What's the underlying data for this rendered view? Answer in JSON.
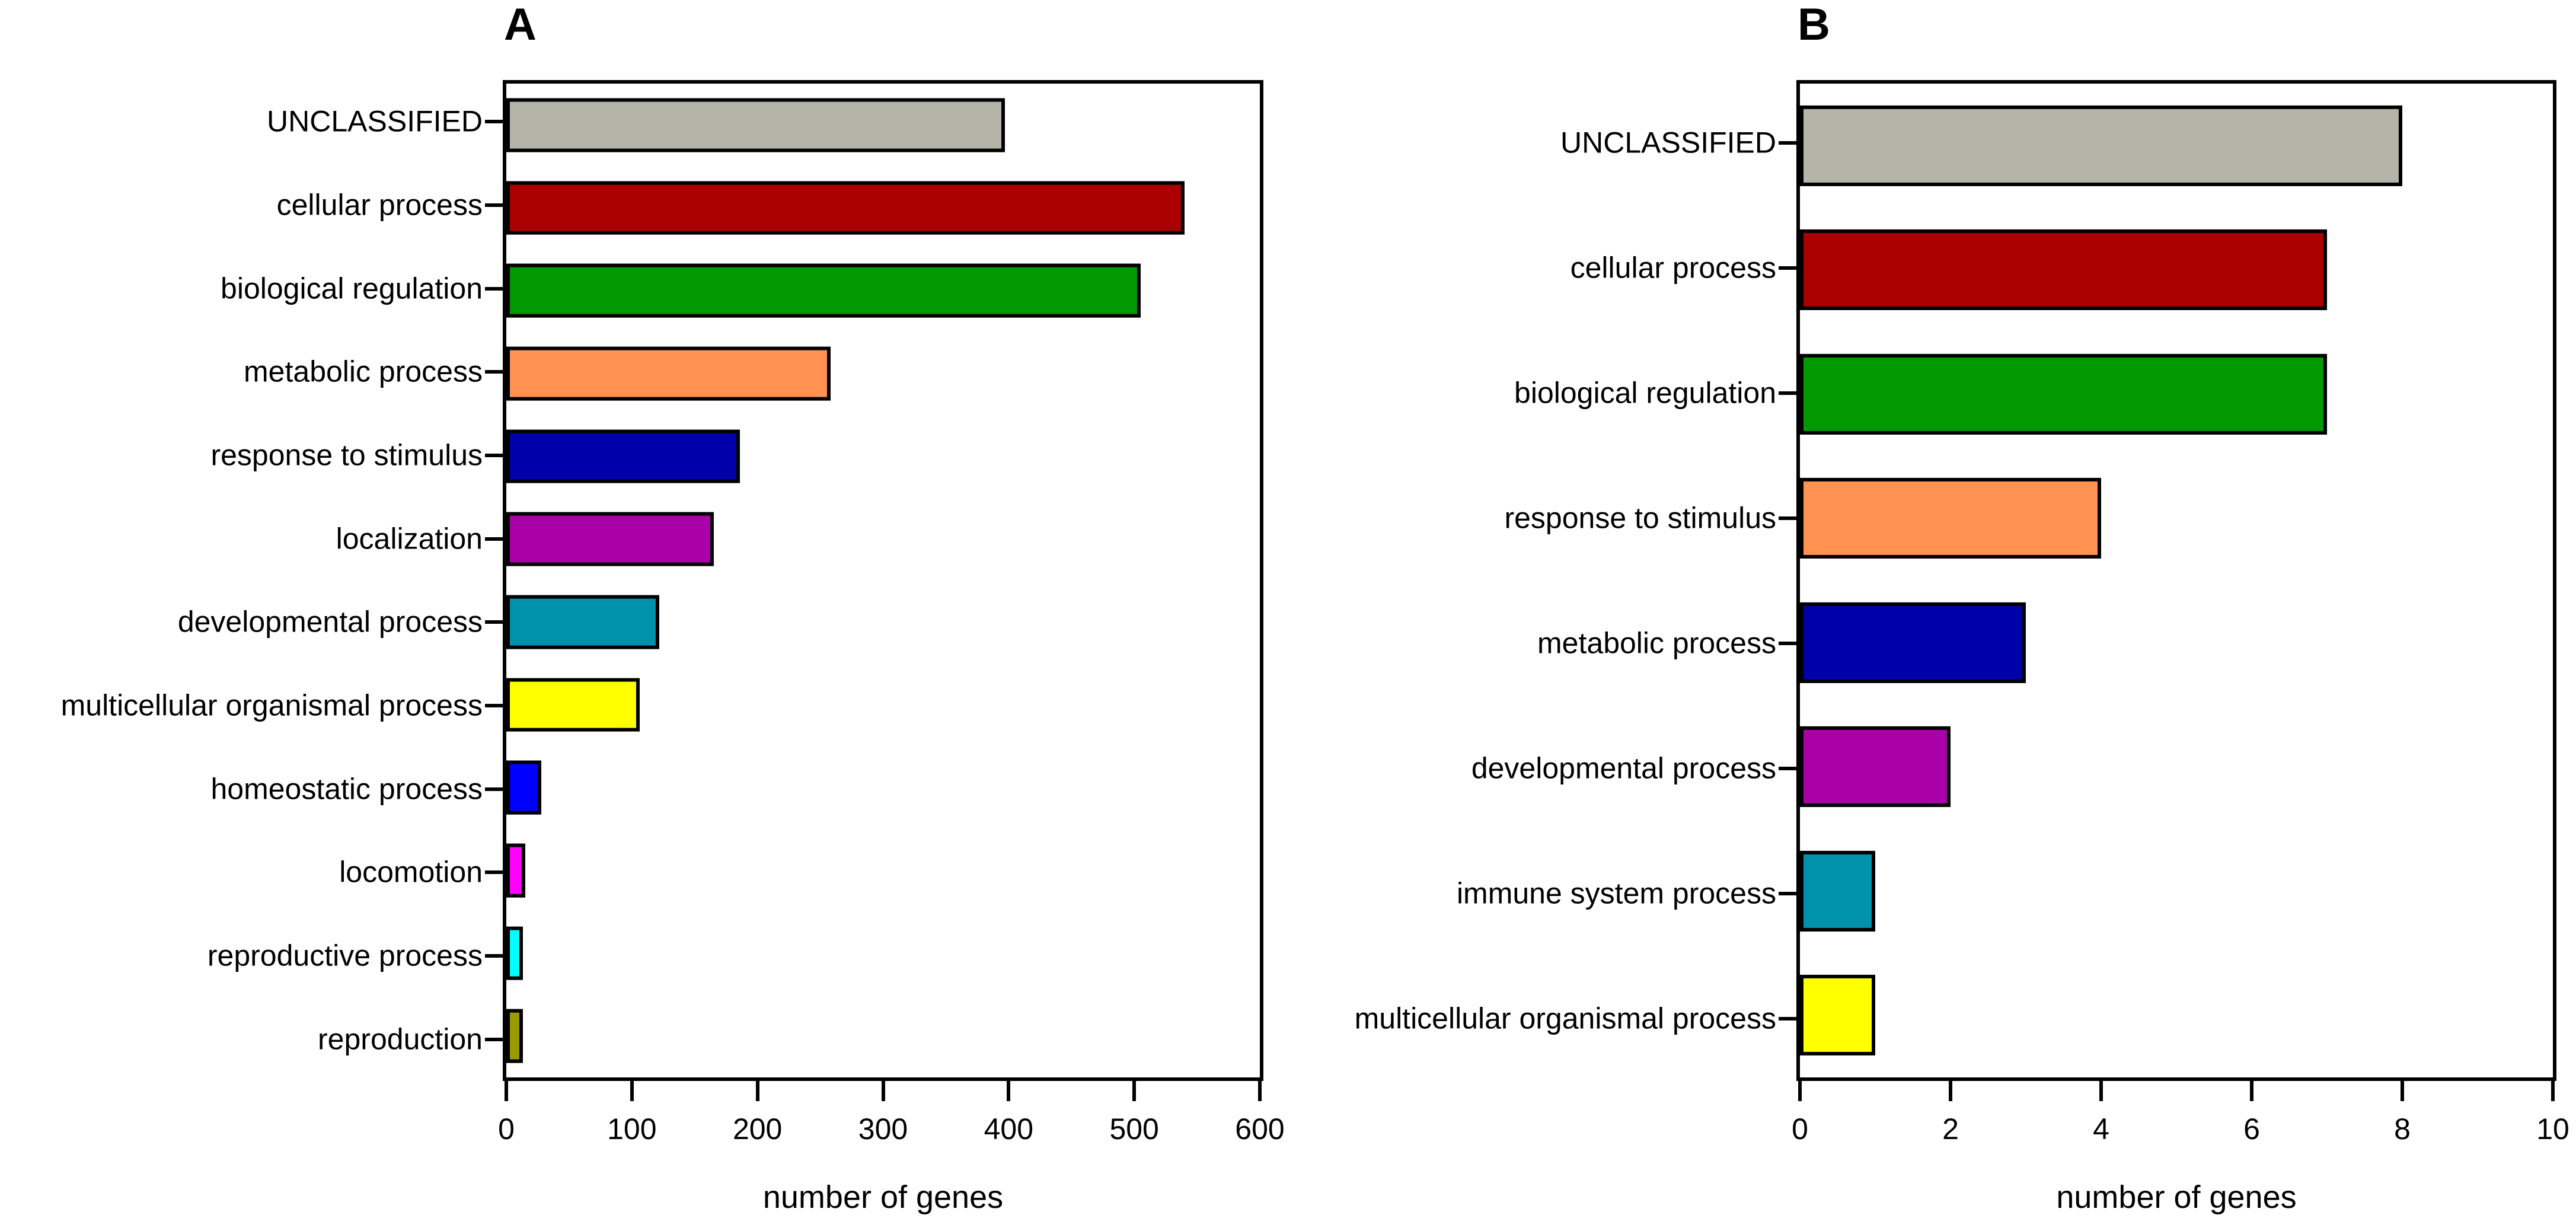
{
  "figure": {
    "background": "#ffffff",
    "axis_color": "#000000",
    "bar_outline_color": "#000000"
  },
  "chart_data": [
    {
      "type": "bar",
      "orientation": "horizontal",
      "panel_label": "A",
      "title": "",
      "xlabel": "number of genes",
      "ylabel": "",
      "xlim": [
        0,
        600
      ],
      "xticks": [
        0,
        100,
        200,
        300,
        400,
        500,
        600
      ],
      "grid": false,
      "legend": "none",
      "categories": [
        "UNCLASSIFIED",
        "cellular process",
        "biological regulation",
        "metabolic process",
        "response to stimulus",
        "localization",
        "developmental process",
        "multicellular organismal process",
        "homeostatic process",
        "locomotion",
        "reproductive process",
        "reproduction"
      ],
      "values": [
        397,
        540,
        505,
        258,
        186,
        165,
        122,
        106,
        28,
        15,
        13,
        13
      ],
      "colors": [
        "#b4b4a9",
        "#aa0000",
        "#009900",
        "#ff9151",
        "#0000aa",
        "#aa00aa",
        "#0091ad",
        "#ffff00",
        "#0000ff",
        "#ff00ff",
        "#00ffff",
        "#999900"
      ]
    },
    {
      "type": "bar",
      "orientation": "horizontal",
      "panel_label": "B",
      "title": "",
      "xlabel": "number of genes",
      "ylabel": "",
      "xlim": [
        0,
        10
      ],
      "xticks": [
        0,
        2,
        4,
        6,
        8,
        10
      ],
      "grid": false,
      "legend": "none",
      "categories": [
        "UNCLASSIFIED",
        "cellular process",
        "biological regulation",
        "response to stimulus",
        "metabolic process",
        "developmental process",
        "immune system process",
        "multicellular organismal process"
      ],
      "values": [
        8,
        7,
        7,
        4,
        3,
        2,
        1,
        1
      ],
      "colors": [
        "#b4b4a9",
        "#aa0000",
        "#009900",
        "#ff9151",
        "#0000aa",
        "#aa00aa",
        "#0091ad",
        "#ffff00"
      ]
    }
  ]
}
